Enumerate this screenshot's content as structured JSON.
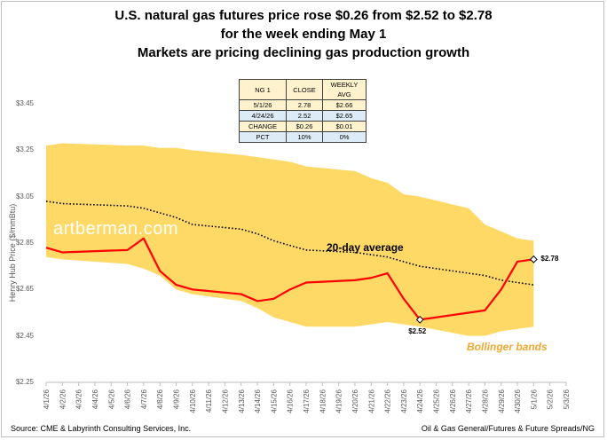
{
  "title_lines": [
    "U.S. natural gas futures price rose $0.26 from $2.52 to $2.78",
    "for the week ending May 1",
    "Markets are pricing declining gas production growth"
  ],
  "source": "Source: CME & Labyrinth Consulting Services, Inc.",
  "credit": "Oil & Gas General/Futures & Future Spreads/NG",
  "watermark": "artberman.com",
  "table": {
    "header": [
      "NG 1",
      "CLOSE",
      "WEEKLY AVG"
    ],
    "rows": [
      [
        "5/1/26",
        "2.78",
        "$2.66"
      ],
      [
        "4/24/26",
        "2.52",
        "$2.65"
      ],
      [
        "CHANGE",
        "$0.26",
        "$0.01"
      ],
      [
        "PCT",
        "10%",
        "0%"
      ]
    ]
  },
  "chart_data": {
    "type": "line",
    "ylabel": "Henry Hub Price ($/mmBtu)",
    "ylim": [
      2.25,
      3.45
    ],
    "yticks": [
      "$2.25",
      "$2.45",
      "$2.65",
      "$2.85",
      "$3.05",
      "$3.25",
      "$3.45"
    ],
    "categories": [
      "4/1/26",
      "4/2/26",
      "4/3/26",
      "4/4/26",
      "4/5/26",
      "4/6/26",
      "4/7/26",
      "4/8/26",
      "4/9/26",
      "4/10/26",
      "4/11/26",
      "4/12/26",
      "4/13/26",
      "4/14/26",
      "4/15/26",
      "4/16/26",
      "4/17/26",
      "4/18/26",
      "4/19/26",
      "4/20/26",
      "4/21/26",
      "4/22/26",
      "4/23/26",
      "4/24/26",
      "4/25/26",
      "4/26/26",
      "4/27/26",
      "4/28/26",
      "4/29/26",
      "4/30/26",
      "5/1/26",
      "5/2/26",
      "5/3/26"
    ],
    "series": [
      {
        "name": "NG 1",
        "color": "#ff0000",
        "values": [
          2.83,
          2.81,
          null,
          null,
          null,
          2.82,
          2.87,
          2.73,
          2.67,
          2.65,
          null,
          null,
          2.63,
          2.6,
          2.61,
          2.65,
          2.68,
          null,
          null,
          2.69,
          2.7,
          2.72,
          2.61,
          2.52,
          null,
          null,
          2.55,
          2.56,
          2.65,
          2.77,
          2.78,
          null,
          null
        ]
      },
      {
        "name": "20-day average",
        "color": "#000000",
        "values": [
          3.03,
          3.02,
          null,
          null,
          null,
          3.01,
          3.0,
          2.98,
          2.96,
          2.93,
          null,
          null,
          2.91,
          2.89,
          2.86,
          2.84,
          2.82,
          null,
          null,
          2.81,
          2.8,
          2.79,
          2.77,
          2.75,
          null,
          null,
          2.72,
          2.71,
          2.69,
          2.68,
          2.67,
          null,
          null
        ]
      },
      {
        "name": "Upper Bollinger band",
        "values": [
          3.27,
          3.28,
          null,
          null,
          null,
          3.27,
          3.27,
          3.26,
          3.26,
          3.25,
          null,
          null,
          3.23,
          3.22,
          3.21,
          3.2,
          3.18,
          null,
          null,
          3.16,
          3.13,
          3.11,
          3.06,
          3.05,
          null,
          null,
          3.0,
          2.93,
          2.9,
          2.87,
          2.86,
          null,
          null
        ]
      },
      {
        "name": "Lower Bollinger band",
        "values": [
          2.79,
          2.78,
          null,
          null,
          null,
          2.76,
          2.74,
          2.71,
          2.65,
          2.63,
          null,
          null,
          2.6,
          2.57,
          2.53,
          2.51,
          2.49,
          null,
          null,
          2.49,
          2.5,
          2.51,
          2.5,
          2.49,
          null,
          null,
          2.45,
          2.45,
          2.47,
          2.48,
          2.49,
          null,
          null
        ]
      }
    ],
    "annotations": [
      {
        "label": "$2.52",
        "x": "4/24/26",
        "y": 2.52
      },
      {
        "label": "$2.78",
        "x": "5/1/26",
        "y": 2.78
      }
    ],
    "avg_label": "20-day average",
    "band_label": "Bollinger bands",
    "band_color": "#ffd966",
    "grid": false,
    "legend": "none"
  }
}
